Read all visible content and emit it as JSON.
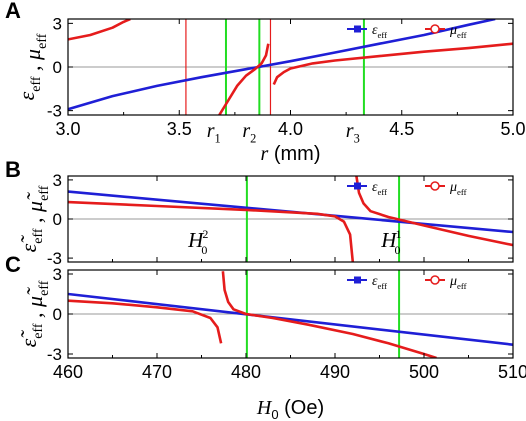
{
  "colors": {
    "eps": "#1f1fd6",
    "mu": "#e51c1c",
    "vline_green": "#22dd22",
    "vline_red": "#e51c1c",
    "zero": "#9a9a9a",
    "frame": "#000000"
  },
  "chart_data": [
    {
      "panel": "A",
      "type": "line",
      "x_label": "r (mm)",
      "y_label": "ε_eff , μ_eff",
      "xlim": [
        3.0,
        5.0
      ],
      "ylim": [
        -3.3,
        3.3
      ],
      "x_ticks": [
        3.0,
        3.5,
        4.0,
        4.5,
        5.0
      ],
      "x_tick_labels": [
        "3.0",
        "3.5",
        "4.0",
        "4.5",
        "5.0"
      ],
      "y_ticks": [
        -3,
        0,
        3
      ],
      "y_tick_labels": [
        "-3",
        "0",
        "3"
      ],
      "legend": {
        "placement": "top-right",
        "entries": [
          "ε_eff",
          "μ_eff"
        ]
      },
      "annotations": [
        "r₁",
        "r₂",
        "r₃"
      ],
      "vlines_green": [
        3.71,
        3.86,
        4.33
      ],
      "vlines_red": [
        3.53,
        3.91
      ],
      "series": [
        {
          "name": "ε_eff",
          "color": "eps",
          "segments": [
            {
              "x": [
                3.0,
                3.2,
                3.4,
                3.6,
                3.8,
                4.0,
                4.2,
                4.4,
                4.6,
                4.8,
                4.92
              ],
              "y": [
                -2.9,
                -2.0,
                -1.3,
                -0.7,
                -0.15,
                0.4,
                1.0,
                1.6,
                2.2,
                2.9,
                3.3
              ]
            }
          ]
        },
        {
          "name": "μ_eff",
          "color": "mu",
          "segments": [
            {
              "x": [
                3.0,
                3.1,
                3.2,
                3.25,
                3.28
              ],
              "y": [
                1.9,
                2.2,
                2.7,
                3.1,
                3.3
              ]
            },
            {
              "x": [
                3.68,
                3.72,
                3.76,
                3.8,
                3.84,
                3.87,
                3.89,
                3.9
              ],
              "y": [
                -3.3,
                -2.3,
                -1.3,
                -0.6,
                -0.15,
                0.25,
                0.8,
                1.6
              ]
            },
            {
              "x": [
                3.925,
                3.94,
                3.97,
                4.0,
                4.1,
                4.2,
                4.4,
                4.6,
                4.8,
                5.0
              ],
              "y": [
                -1.2,
                -0.7,
                -0.35,
                -0.1,
                0.25,
                0.45,
                0.75,
                1.05,
                1.3,
                1.6
              ]
            }
          ]
        }
      ]
    },
    {
      "panel": "B",
      "type": "line",
      "y_label": "ε̃_eff , μ̃_eff",
      "xlim": [
        460,
        510
      ],
      "ylim": [
        -3.3,
        3.3
      ],
      "x_ticks": [
        460,
        470,
        480,
        490,
        500,
        510
      ],
      "x_tick_labels": [],
      "y_ticks": [
        -3,
        0,
        3
      ],
      "y_tick_labels": [
        "-3",
        "0",
        "3"
      ],
      "legend": {
        "placement": "top-right",
        "entries": [
          "ε_eff",
          "μ_eff"
        ]
      },
      "annotations": [
        "H₀²",
        "H₀¹"
      ],
      "vlines_green": [
        480.1,
        497.2
      ],
      "vlines_red": [],
      "series": [
        {
          "name": "ε_eff",
          "color": "eps",
          "segments": [
            {
              "x": [
                460,
                510
              ],
              "y": [
                2.1,
                -1.0
              ]
            }
          ]
        },
        {
          "name": "μ_eff",
          "color": "mu",
          "segments": [
            {
              "x": [
                460,
                470,
                480,
                488,
                490,
                491,
                491.7,
                492.0
              ],
              "y": [
                1.3,
                1.0,
                0.7,
                0.4,
                0.2,
                -0.2,
                -1.2,
                -3.3
              ]
            },
            {
              "x": [
                492.4,
                492.7,
                493.2,
                494,
                496,
                500,
                505,
                510
              ],
              "y": [
                3.3,
                2.0,
                1.2,
                0.6,
                0.15,
                -0.5,
                -1.3,
                -2.0
              ]
            }
          ]
        }
      ]
    },
    {
      "panel": "C",
      "type": "line",
      "x_label": "H₀ (Oe)",
      "y_label": "ε̃_eff , μ̃_eff",
      "xlim": [
        460,
        510
      ],
      "ylim": [
        -3.3,
        3.3
      ],
      "x_ticks": [
        460,
        470,
        480,
        490,
        500,
        510
      ],
      "x_tick_labels": [
        "460",
        "470",
        "480",
        "490",
        "500",
        "510"
      ],
      "y_ticks": [
        -3,
        0,
        3
      ],
      "y_tick_labels": [
        "-3",
        "0",
        "3"
      ],
      "legend": {
        "placement": "top-right",
        "entries": [
          "ε_eff",
          "μ_eff"
        ]
      },
      "annotations": [],
      "vlines_green": [
        480.1,
        497.2
      ],
      "vlines_red": [],
      "series": [
        {
          "name": "ε_eff",
          "color": "eps",
          "segments": [
            {
              "x": [
                460,
                510
              ],
              "y": [
                1.5,
                -2.3
              ]
            }
          ]
        },
        {
          "name": "μ_eff",
          "color": "mu",
          "segments": [
            {
              "x": [
                460,
                465,
                470,
                474,
                476,
                476.8,
                477.2
              ],
              "y": [
                1.0,
                0.8,
                0.5,
                0.2,
                -0.3,
                -1.0,
                -2.2
              ]
            },
            {
              "x": [
                477.4,
                477.6,
                478,
                478.6,
                480,
                483,
                487,
                492,
                496,
                500,
                501.4
              ],
              "y": [
                3.2,
                1.8,
                0.9,
                0.35,
                0.0,
                -0.3,
                -0.8,
                -1.5,
                -2.2,
                -3.0,
                -3.3
              ]
            }
          ]
        }
      ]
    }
  ]
}
